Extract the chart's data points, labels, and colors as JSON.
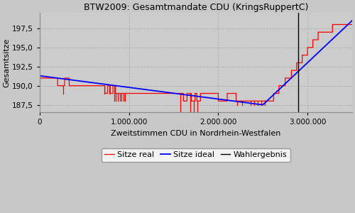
{
  "title": "BTW2009: Gesamtmandate CDU (KringsRuppertC)",
  "xlabel": "Zweitstimmen CDU in Nordrhein-Westfalen",
  "ylabel": "Gesamtsitze",
  "ylim": [
    186.5,
    199.5
  ],
  "xlim": [
    0,
    3500000
  ],
  "wahlergebnis_x": 2900000,
  "background_color": "#c8c8c8",
  "plot_bg_color": "#cccccc",
  "grid_color": "#b0b0b0",
  "legend_labels": [
    "Sitze real",
    "Sitze ideal",
    "Wahlergebnis"
  ],
  "legend_colors": [
    "red",
    "blue",
    "black"
  ],
  "yticks": [
    187.5,
    190.0,
    192.5,
    195.0,
    197.5
  ],
  "xticks": [
    0,
    1000000,
    2000000,
    3000000
  ],
  "ideal_start": 191.3,
  "ideal_min_x": 2500000,
  "ideal_min_y": 187.5,
  "ideal_end": 198.5,
  "x_end": 3500000
}
